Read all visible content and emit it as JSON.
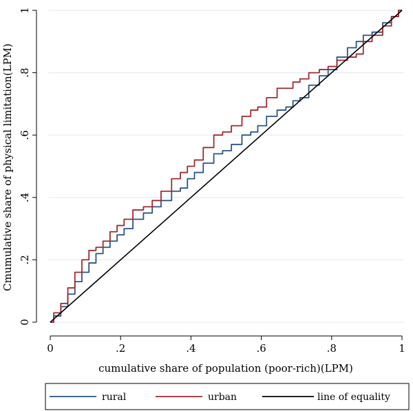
{
  "chart_data": {
    "type": "line",
    "title": "",
    "xlabel": "cumulative share of population (poor-rich)(LPM)",
    "ylabel": "Cmumulative share of physical limitation(LPM)",
    "xlim": [
      0,
      1
    ],
    "ylim": [
      0,
      1
    ],
    "x_ticks": [
      0,
      0.2,
      0.4,
      0.6,
      0.8,
      1
    ],
    "x_tick_labels": [
      "0",
      ".2",
      ".4",
      ".6",
      ".8",
      "1"
    ],
    "y_ticks": [
      0,
      0.2,
      0.4,
      0.6,
      0.8,
      1
    ],
    "y_tick_labels": [
      "0",
      ".2",
      ".4",
      ".6",
      ".8",
      "1"
    ],
    "grid": "horizontal",
    "legend_position": "bottom",
    "series": [
      {
        "name": "rural",
        "color": "#2a5384",
        "x": [
          0,
          0.02,
          0.04,
          0.06,
          0.08,
          0.1,
          0.12,
          0.14,
          0.16,
          0.18,
          0.2,
          0.22,
          0.25,
          0.28,
          0.3,
          0.33,
          0.36,
          0.38,
          0.4,
          0.42,
          0.45,
          0.48,
          0.5,
          0.53,
          0.56,
          0.58,
          0.6,
          0.63,
          0.66,
          0.68,
          0.7,
          0.72,
          0.75,
          0.78,
          0.8,
          0.83,
          0.86,
          0.88,
          0.9,
          0.93,
          0.96,
          0.98,
          1.0
        ],
        "y": [
          0,
          0.02,
          0.05,
          0.09,
          0.13,
          0.16,
          0.19,
          0.22,
          0.24,
          0.26,
          0.28,
          0.3,
          0.33,
          0.35,
          0.37,
          0.39,
          0.42,
          0.43,
          0.46,
          0.48,
          0.51,
          0.54,
          0.55,
          0.57,
          0.6,
          0.61,
          0.63,
          0.66,
          0.68,
          0.69,
          0.71,
          0.72,
          0.76,
          0.79,
          0.81,
          0.85,
          0.88,
          0.9,
          0.92,
          0.93,
          0.96,
          0.98,
          1.0
        ]
      },
      {
        "name": "urban",
        "color": "#9e2a2f",
        "x": [
          0,
          0.02,
          0.04,
          0.06,
          0.08,
          0.1,
          0.12,
          0.14,
          0.16,
          0.18,
          0.2,
          0.22,
          0.25,
          0.28,
          0.3,
          0.33,
          0.36,
          0.38,
          0.4,
          0.42,
          0.45,
          0.48,
          0.5,
          0.53,
          0.56,
          0.58,
          0.6,
          0.63,
          0.66,
          0.68,
          0.7,
          0.72,
          0.75,
          0.78,
          0.8,
          0.83,
          0.86,
          0.88,
          0.9,
          0.93,
          0.96,
          0.98,
          1.0
        ],
        "y": [
          0,
          0.03,
          0.06,
          0.11,
          0.16,
          0.2,
          0.23,
          0.24,
          0.26,
          0.29,
          0.31,
          0.33,
          0.36,
          0.37,
          0.39,
          0.42,
          0.46,
          0.48,
          0.5,
          0.52,
          0.56,
          0.6,
          0.61,
          0.63,
          0.66,
          0.68,
          0.69,
          0.72,
          0.75,
          0.75,
          0.77,
          0.78,
          0.8,
          0.81,
          0.82,
          0.84,
          0.85,
          0.86,
          0.9,
          0.92,
          0.95,
          0.98,
          1.0
        ]
      },
      {
        "name": "line of equality",
        "color": "#000000",
        "x": [
          0,
          1
        ],
        "y": [
          0,
          1
        ]
      }
    ]
  }
}
